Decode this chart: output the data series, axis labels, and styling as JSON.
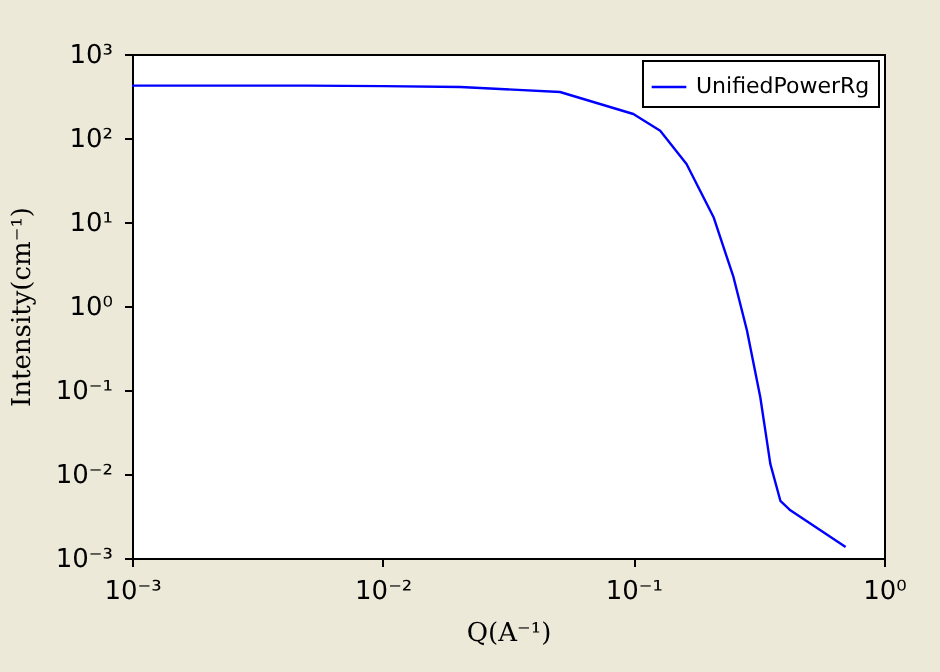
{
  "chart_data": {
    "type": "line",
    "xlabel": "Q(A⁻¹)",
    "ylabel": "Intensity(cm⁻¹)",
    "log": "xy",
    "legend": "top right",
    "x": [
      0.001,
      0.005,
      0.01,
      0.0204,
      0.051,
      0.1,
      0.128,
      0.163,
      0.209,
      0.251,
      0.284,
      0.321,
      0.352,
      0.386,
      0.423,
      0.703
    ],
    "series": [
      {
        "name": "UnifiedPowerRg",
        "color": "#0000ff",
        "values": [
          420,
          420,
          415,
          405,
          353,
          193,
          122,
          49,
          11.4,
          2.2,
          0.51,
          0.082,
          0.0132,
          0.0048,
          0.0037,
          0.00135
        ]
      }
    ],
    "xlim": [
      0.001,
      1
    ],
    "ylim": [
      0.001,
      1000
    ],
    "xticks": [
      {
        "value": 0.001,
        "label": "10⁻³"
      },
      {
        "value": 0.01,
        "label": "10⁻²"
      },
      {
        "value": 0.1,
        "label": "10⁻¹"
      },
      {
        "value": 1,
        "label": "10⁰"
      }
    ],
    "yticks": [
      {
        "value": 0.001,
        "label": "10⁻³"
      },
      {
        "value": 0.01,
        "label": "10⁻²"
      },
      {
        "value": 0.1,
        "label": "10⁻¹"
      },
      {
        "value": 1,
        "label": "10⁰"
      },
      {
        "value": 10,
        "label": "10¹"
      },
      {
        "value": 100,
        "label": "10²"
      },
      {
        "value": 1000,
        "label": "10³"
      }
    ]
  }
}
